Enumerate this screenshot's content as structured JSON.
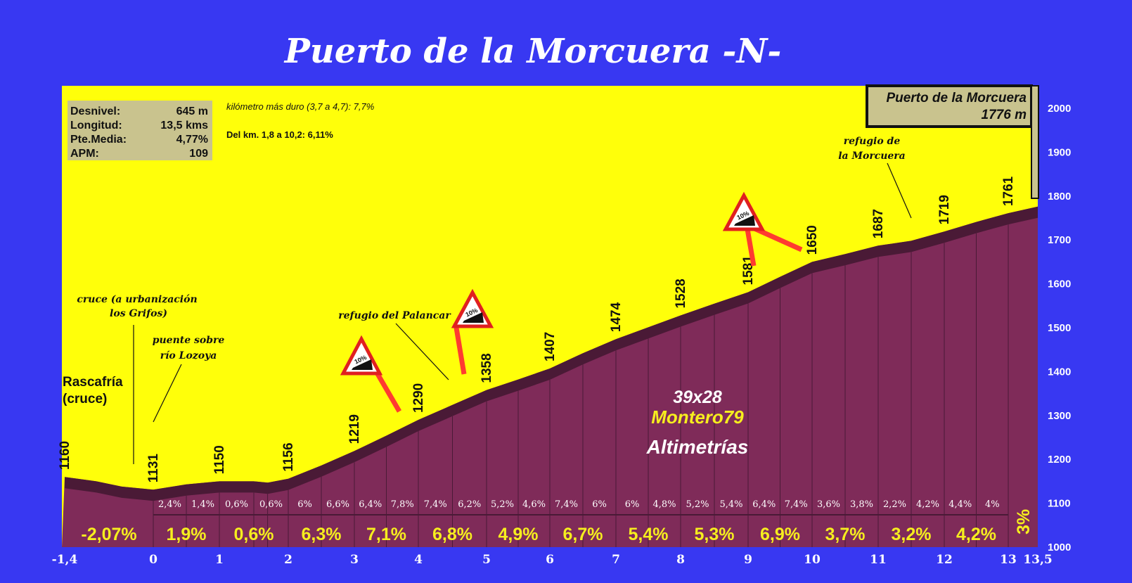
{
  "chart_data": {
    "type": "area",
    "title": "Puerto de la Morcuera -N-",
    "x_ticks": [
      "-1,4",
      "0",
      "1",
      "2",
      "3",
      "4",
      "5",
      "6",
      "7",
      "8",
      "9",
      "10",
      "11",
      "12",
      "13",
      "13,5"
    ],
    "y_ticks": [
      "1000",
      "1100",
      "1200",
      "1300",
      "1400",
      "1500",
      "1600",
      "1700",
      "1800",
      "1900",
      "2000"
    ],
    "xlim": [
      -1.4,
      13.5
    ],
    "ylim": [
      1000,
      2050
    ],
    "profile": [
      {
        "x": -1.4,
        "y": 1160
      },
      {
        "x": -0.9,
        "y": 1150
      },
      {
        "x": -0.5,
        "y": 1138
      },
      {
        "x": 0,
        "y": 1131
      },
      {
        "x": 0.5,
        "y": 1143
      },
      {
        "x": 1,
        "y": 1150
      },
      {
        "x": 1.5,
        "y": 1150
      },
      {
        "x": 1.7,
        "y": 1147
      },
      {
        "x": 2,
        "y": 1156
      },
      {
        "x": 2.5,
        "y": 1186
      },
      {
        "x": 3,
        "y": 1219
      },
      {
        "x": 3.5,
        "y": 1254
      },
      {
        "x": 4,
        "y": 1290
      },
      {
        "x": 4.5,
        "y": 1324
      },
      {
        "x": 5,
        "y": 1358
      },
      {
        "x": 5.5,
        "y": 1382
      },
      {
        "x": 6,
        "y": 1407
      },
      {
        "x": 6.5,
        "y": 1442
      },
      {
        "x": 7,
        "y": 1474
      },
      {
        "x": 7.5,
        "y": 1501
      },
      {
        "x": 8,
        "y": 1528
      },
      {
        "x": 8.5,
        "y": 1555
      },
      {
        "x": 9,
        "y": 1581
      },
      {
        "x": 9.5,
        "y": 1616
      },
      {
        "x": 10,
        "y": 1650
      },
      {
        "x": 10.5,
        "y": 1668
      },
      {
        "x": 11,
        "y": 1687
      },
      {
        "x": 11.5,
        "y": 1698
      },
      {
        "x": 12,
        "y": 1719
      },
      {
        "x": 12.5,
        "y": 1741
      },
      {
        "x": 13,
        "y": 1761
      },
      {
        "x": 13.5,
        "y": 1776
      }
    ],
    "altitude_labels": [
      {
        "x": -1.4,
        "text": "1160"
      },
      {
        "x": 0,
        "text": "1131"
      },
      {
        "x": 1,
        "text": "1150"
      },
      {
        "x": 2,
        "text": "1156"
      },
      {
        "x": 3,
        "text": "1219"
      },
      {
        "x": 4,
        "text": "1290"
      },
      {
        "x": 5,
        "text": "1358"
      },
      {
        "x": 6,
        "text": "1407"
      },
      {
        "x": 7,
        "text": "1474"
      },
      {
        "x": 8,
        "text": "1528"
      },
      {
        "x": 9,
        "text": "1581"
      },
      {
        "x": 10,
        "text": "1650"
      },
      {
        "x": 11,
        "text": "1687"
      },
      {
        "x": 12,
        "text": "1719"
      },
      {
        "x": 13,
        "text": "1761"
      }
    ],
    "half_km_gradients": [
      "2,4%",
      "1,4%",
      "0,6%",
      "0,6%",
      "6%",
      "6,6%",
      "6,4%",
      "7,8%",
      "7,4%",
      "6,2%",
      "5,2%",
      "4,6%",
      "7,4%",
      "6%",
      "6%",
      "4,8%",
      "5,2%",
      "5,4%",
      "6,4%",
      "7,4%",
      "3,6%",
      "3,8%",
      "2,2%",
      "4,2%",
      "4,4%",
      "4%"
    ],
    "km_gradients": [
      {
        "label": "-2,07%",
        "color": "#ff2020"
      },
      {
        "label": "1,9%",
        "color": "#f6ee1e"
      },
      {
        "label": "0,6%",
        "color": "#f6ee1e"
      },
      {
        "label": "6,3%",
        "color": "#f6ee1e"
      },
      {
        "label": "7,1%",
        "color": "#f6ee1e"
      },
      {
        "label": "6,8%",
        "color": "#f6ee1e"
      },
      {
        "label": "4,9%",
        "color": "#f6ee1e"
      },
      {
        "label": "6,7%",
        "color": "#f6ee1e"
      },
      {
        "label": "5,4%",
        "color": "#f6ee1e"
      },
      {
        "label": "5,3%",
        "color": "#f6ee1e"
      },
      {
        "label": "6,9%",
        "color": "#f6ee1e"
      },
      {
        "label": "3,7%",
        "color": "#f6ee1e"
      },
      {
        "label": "3,2%",
        "color": "#f6ee1e"
      },
      {
        "label": "4,2%",
        "color": "#f6ee1e"
      },
      {
        "label": "3%",
        "color": "#f6ee1e"
      }
    ],
    "annotations": {
      "start_place": [
        "Rascafría",
        "(cruce)"
      ],
      "cruce": [
        "cruce (a urbanización",
        "los Grifos)"
      ],
      "puente": [
        "puente sobre",
        "río Lozoya"
      ],
      "palancar": "refugio del Palancar",
      "refugio_morcuera": [
        "refugio de",
        "la Morcuera"
      ],
      "summit": [
        "Puerto de la Morcuera",
        "1776 m"
      ],
      "steep_km": "kilómetro más duro (3,7 a 4,7):  7,7%",
      "stretch": "Del km. 1,8 a 10,2:  6,11%",
      "sign_text": "10%"
    },
    "stats": [
      {
        "label": "Desnivel:",
        "value": "645 m"
      },
      {
        "label": "Longitud:",
        "value": "13,5 kms"
      },
      {
        "label": "Pte.Media:",
        "value": "4,77%"
      },
      {
        "label": "APM:",
        "value": "109"
      }
    ],
    "watermark": [
      "39x28",
      "Montero79",
      "Altimetrías"
    ],
    "colors": {
      "background": "#3838f2",
      "sky": "#ffff0a",
      "profile_fill": "#7f2b59",
      "profile_edge": "#4a1a36",
      "arrow": "#ff3b30"
    }
  }
}
